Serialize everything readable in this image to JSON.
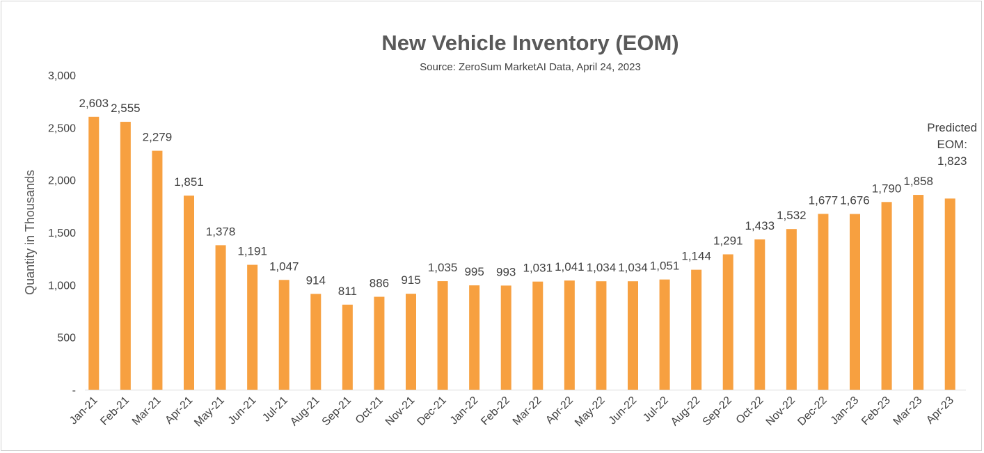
{
  "chart_data": {
    "type": "bar",
    "title": "New Vehicle Inventory (EOM)",
    "subtitle": "Source: ZeroSum MarketAI Data, April 24, 2023",
    "xlabel": "",
    "ylabel": "Quantity in Thousands",
    "ylim": [
      0,
      3000
    ],
    "yticks": [
      {
        "value": 0,
        "label": "-"
      },
      {
        "value": 500,
        "label": "500"
      },
      {
        "value": 1000,
        "label": "1,000"
      },
      {
        "value": 1500,
        "label": "1,500"
      },
      {
        "value": 2000,
        "label": "2,000"
      },
      {
        "value": 2500,
        "label": "2,500"
      },
      {
        "value": 3000,
        "label": "3,000"
      }
    ],
    "grid": false,
    "bar_color": "#F7A040",
    "categories": [
      "Jan-21",
      "Feb-21",
      "Mar-21",
      "Apr-21",
      "May-21",
      "Jun-21",
      "Jul-21",
      "Aug-21",
      "Sep-21",
      "Oct-21",
      "Nov-21",
      "Dec-21",
      "Jan-22",
      "Feb-22",
      "Mar-22",
      "Apr-22",
      "May-22",
      "Jun-22",
      "Jul-22",
      "Aug-22",
      "Sep-22",
      "Oct-22",
      "Nov-22",
      "Dec-22",
      "Jan-23",
      "Feb-23",
      "Mar-23",
      "Apr-23"
    ],
    "values": [
      2603,
      2555,
      2279,
      1851,
      1378,
      1191,
      1047,
      914,
      811,
      886,
      915,
      1035,
      995,
      993,
      1031,
      1041,
      1034,
      1034,
      1051,
      1144,
      1291,
      1433,
      1532,
      1677,
      1676,
      1790,
      1858,
      1823
    ],
    "data_labels": [
      "2,603",
      "2,555",
      "2,279",
      "1,851",
      "1,378",
      "1,191",
      "1,047",
      "914",
      "811",
      "886",
      "915",
      "1,035",
      "995",
      "993",
      "1,031",
      "1,041",
      "1,034",
      "1,034",
      "1,051",
      "1,144",
      "1,291",
      "1,433",
      "1,532",
      "1,677",
      "1,676",
      "1,790",
      "1,858",
      ""
    ],
    "annotation": {
      "category": "Apr-23",
      "lines": [
        "Predicted",
        "EOM:",
        "1,823"
      ]
    }
  }
}
